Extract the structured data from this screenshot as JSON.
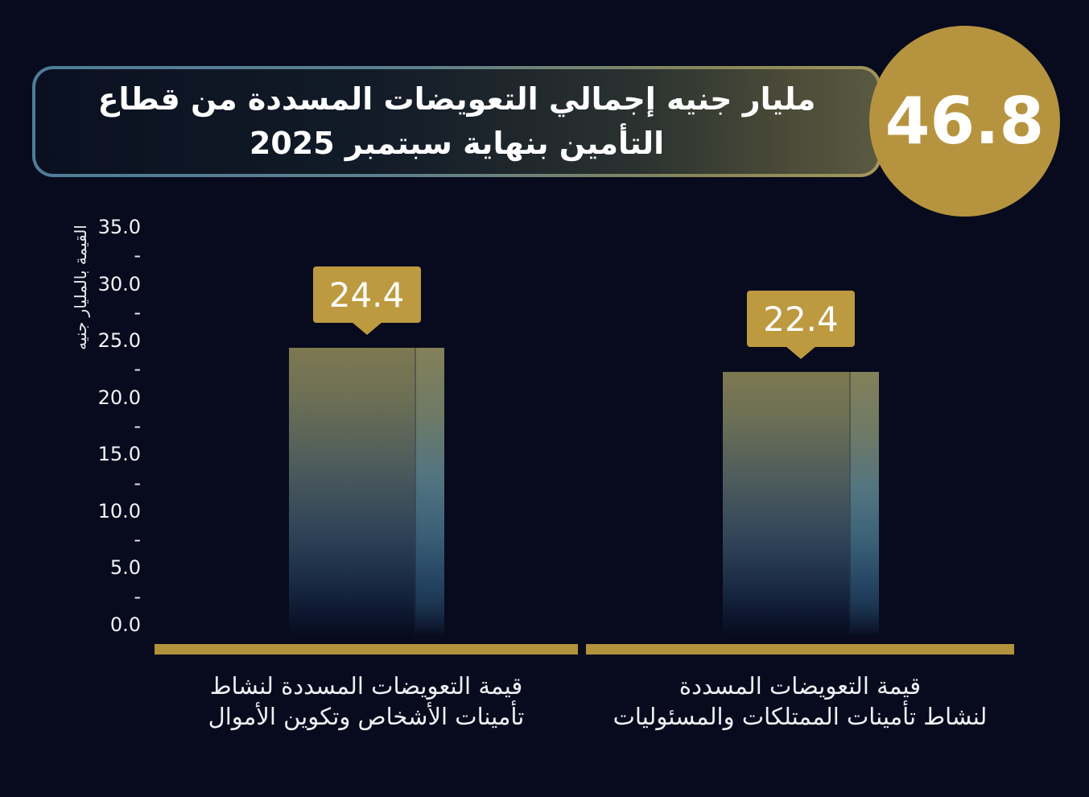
{
  "header": {
    "title_line1": "مليار جنيه إجمالي التعويضات المسددة من قطاع",
    "title_line2": "التأمين بنهاية سبتمبر 2025",
    "badge_value": "46.8"
  },
  "y_axis": {
    "title": "القيمة بالمليار جنيه",
    "ticks": [
      "35.0",
      "-",
      "30.0",
      "-",
      "25.0",
      "-",
      "20.0",
      "-",
      "15.0",
      "-",
      "10.0",
      "-",
      "5.0",
      "-",
      "0.0"
    ]
  },
  "bars": [
    {
      "value_label": "24.4",
      "label_line1": "قيمة التعويضات المسددة لنشاط",
      "label_line2": "تأمينات الأشخاص وتكوين الأموال"
    },
    {
      "value_label": "22.4",
      "label_line1": "قيمة التعويضات المسددة",
      "label_line2": "لنشاط تأمينات الممتلكات والمسئوليات"
    }
  ],
  "chart_data": {
    "type": "bar",
    "title": "مليار جنيه إجمالي التعويضات المسددة من قطاع التأمين بنهاية سبتمبر 2025",
    "total_value": 46.8,
    "categories": [
      "قيمة التعويضات المسددة لنشاط تأمينات الأشخاص وتكوين الأموال",
      "قيمة التعويضات المسددة لنشاط تأمينات الممتلكات والمسئوليات"
    ],
    "values": [
      24.4,
      22.4
    ],
    "ylabel": "القيمة بالمليار جنيه",
    "ytick_values": [
      35.0,
      30.0,
      25.0,
      20.0,
      15.0,
      10.0,
      5.0,
      0.0
    ],
    "ylim": [
      0,
      35
    ],
    "unit": "مليار جنيه",
    "grid": false,
    "legend": false
  },
  "colors": {
    "background": "#070b1d",
    "gold_badge": "#b6943f",
    "gold_callout": "#bd9a40",
    "gold_baseline": "#b3923c",
    "title_border_blue": "#4e7d99",
    "title_border_olive": "#a2975b",
    "bar_top": "#7e7850",
    "bar_bottom": "#0d1830",
    "text": "#ffffff"
  }
}
